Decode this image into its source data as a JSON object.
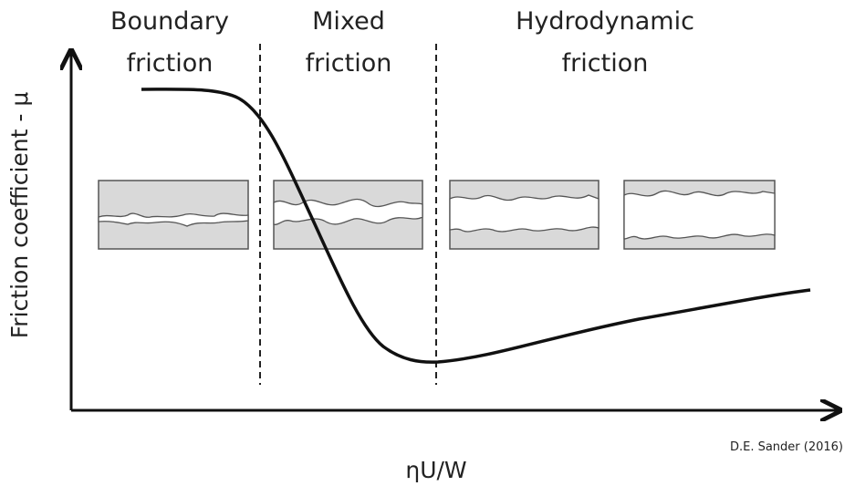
{
  "regions": [
    {
      "line1": "Boundary",
      "line2": "friction"
    },
    {
      "line1": "Mixed",
      "line2": "friction"
    },
    {
      "line1": "Hydrodynamic",
      "line2": "friction"
    }
  ],
  "y_axis_label": "Friction coefficient - μ",
  "x_axis_label": "ηU/W",
  "credit": "D.E. Sander (2016)"
}
